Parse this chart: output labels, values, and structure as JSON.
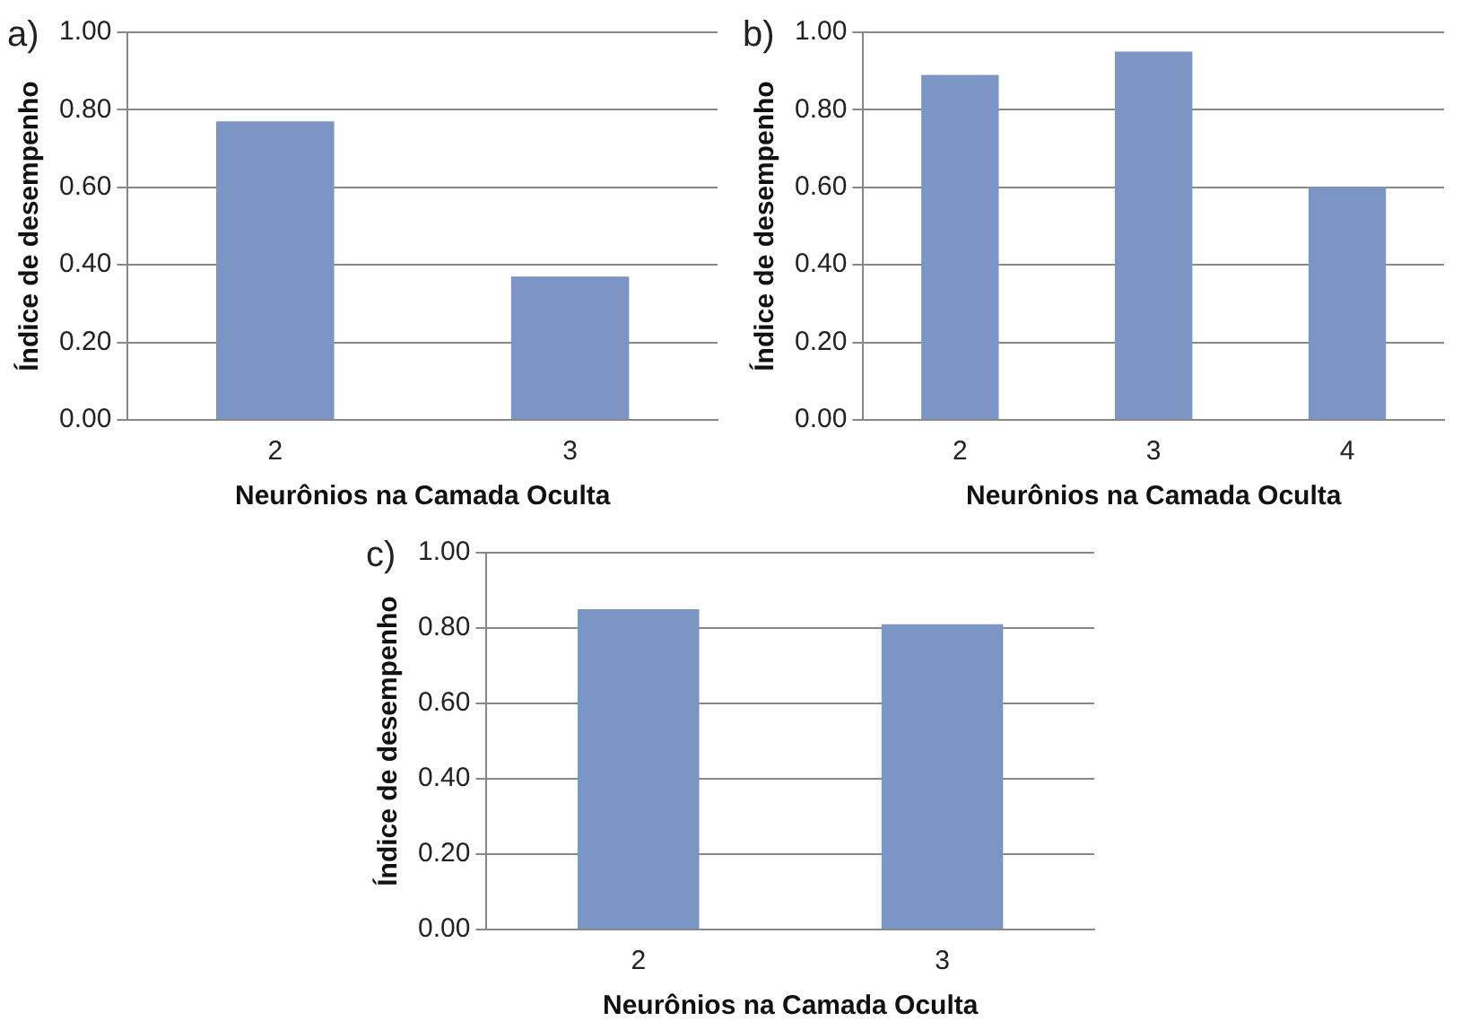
{
  "chart_data": [
    {
      "type": "bar",
      "title": "a)",
      "xlabel": "Neurônios na Camada Oculta",
      "ylabel": "Índice de desempenho",
      "categories": [
        "2",
        "3"
      ],
      "values": [
        0.77,
        0.37
      ],
      "color": "#7b95c4",
      "ylim": [
        0,
        1
      ],
      "yticks": [
        {
          "value": 0,
          "label": "0.00"
        },
        {
          "value": 0.2,
          "label": "0.20"
        },
        {
          "value": 0.4,
          "label": "0.40"
        },
        {
          "value": 0.6,
          "label": "0.60"
        },
        {
          "value": 0.8,
          "label": "0.80"
        },
        {
          "value": 1,
          "label": "1.00"
        }
      ],
      "grid": "y"
    },
    {
      "type": "bar",
      "title": "b)",
      "xlabel": "Neurônios na Camada Oculta",
      "ylabel": "Índice de desempenho",
      "categories": [
        "2",
        "3",
        "4"
      ],
      "values": [
        0.89,
        0.95,
        0.6
      ],
      "color": "#7b95c4",
      "ylim": [
        0,
        1
      ],
      "yticks": [
        {
          "value": 0,
          "label": "0.00"
        },
        {
          "value": 0.2,
          "label": "0.20"
        },
        {
          "value": 0.4,
          "label": "0.40"
        },
        {
          "value": 0.6,
          "label": "0.60"
        },
        {
          "value": 0.8,
          "label": "0.80"
        },
        {
          "value": 1,
          "label": "1.00"
        }
      ],
      "grid": "y"
    },
    {
      "type": "bar",
      "title": "c)",
      "xlabel": "Neurônios na Camada Oculta",
      "ylabel": "Índice de desempenho",
      "categories": [
        "2",
        "3"
      ],
      "values": [
        0.85,
        0.81
      ],
      "color": "#7b95c4",
      "ylim": [
        0,
        1
      ],
      "yticks": [
        {
          "value": 0,
          "label": "0.00"
        },
        {
          "value": 0.2,
          "label": "0.20"
        },
        {
          "value": 0.4,
          "label": "0.40"
        },
        {
          "value": 0.6,
          "label": "0.60"
        },
        {
          "value": 0.8,
          "label": "0.80"
        },
        {
          "value": 1,
          "label": "1.00"
        }
      ],
      "grid": "y"
    }
  ]
}
